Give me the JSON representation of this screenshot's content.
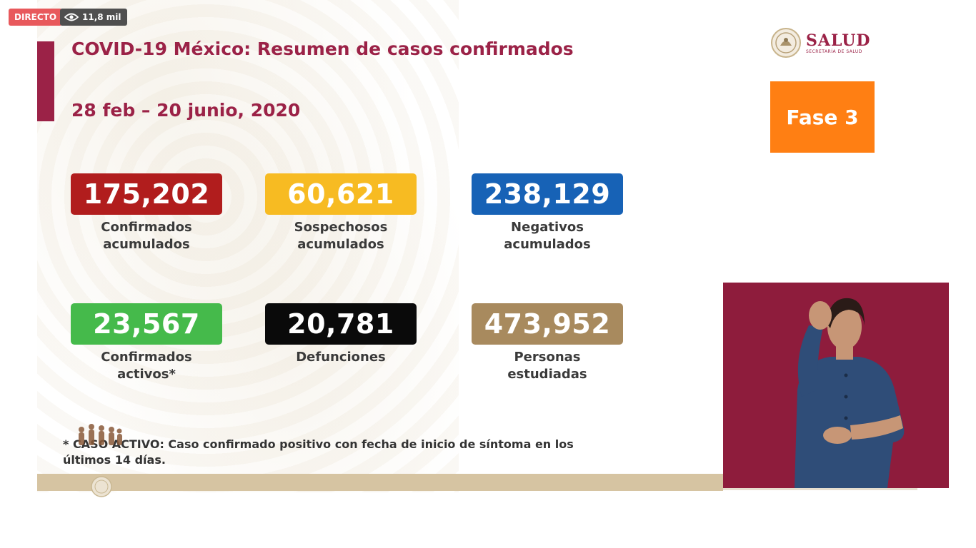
{
  "overlay": {
    "live_label": "DIRECTO",
    "views": "11,8 mil",
    "views_icon": "eye-icon"
  },
  "slide": {
    "title": "COVID-19 México: Resumen de casos confirmados",
    "date_range": "28 feb – 20 junio, 2020",
    "logo": {
      "name": "SALUD",
      "subtitle": "SECRETARÍA DE SALUD",
      "icon": "seal-icon"
    },
    "phase": "Fase 3",
    "accent_color": "#9b2247",
    "stats": [
      {
        "value": "175,202",
        "label": "Confirmados\nacumulados",
        "color": "#b11d1d"
      },
      {
        "value": "60,621",
        "label": "Sospechosos\nacumulados",
        "color": "#f7bb22"
      },
      {
        "value": "238,129",
        "label": "Negativos\nacumulados",
        "color": "#1762b6"
      },
      {
        "value": "23,567",
        "label": "Confirmados\nactivos*",
        "color": "#45ba4b"
      },
      {
        "value": "20,781",
        "label": "Defunciones",
        "color": "#0a0a0a"
      },
      {
        "value": "473,952",
        "label": "Personas\nestudiadas",
        "color": "#a88a5e"
      }
    ],
    "footnote": "* CASO ACTIVO: Caso confirmado positivo con fecha de inicio de síntoma en los últimos 14 días."
  }
}
